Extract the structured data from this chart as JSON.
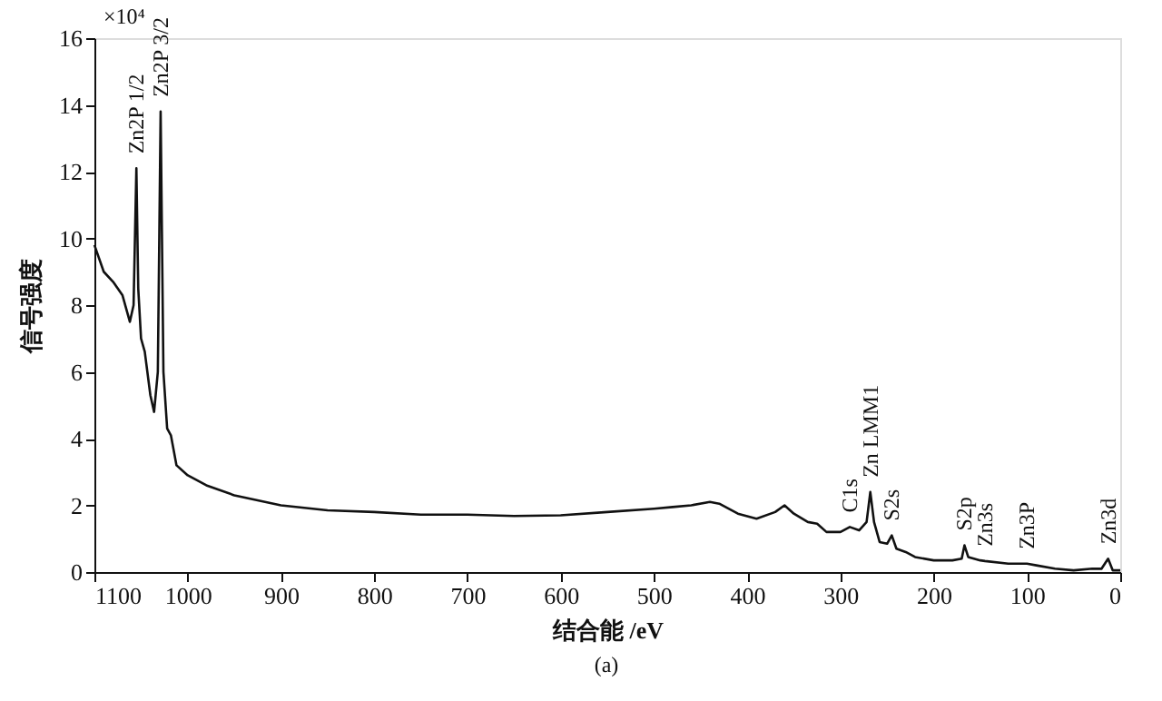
{
  "chart_data": {
    "type": "line",
    "xlabel": "结合能 /eV",
    "ylabel": "信号强度",
    "x": [
      1100,
      1090,
      1080,
      1070,
      1062,
      1058,
      1055,
      1053,
      1050,
      1046,
      1040,
      1036,
      1032,
      1029,
      1026,
      1022,
      1018,
      1012,
      1000,
      980,
      950,
      900,
      850,
      800,
      750,
      700,
      650,
      600,
      550,
      500,
      480,
      460,
      440,
      430,
      410,
      390,
      370,
      360,
      350,
      335,
      325,
      315,
      300,
      290,
      280,
      272,
      268,
      264,
      258,
      250,
      245,
      240,
      230,
      220,
      200,
      180,
      170,
      167,
      163,
      150,
      145,
      120,
      100,
      90,
      70,
      50,
      30,
      20,
      13,
      8,
      0
    ],
    "series": [
      {
        "color": "#111111",
        "values": [
          9.8,
          9.0,
          8.7,
          8.3,
          7.5,
          8.0,
          12.1,
          8.5,
          7.0,
          6.6,
          5.3,
          4.8,
          6.0,
          13.8,
          6.0,
          4.3,
          4.1,
          3.2,
          2.9,
          2.6,
          2.3,
          2.0,
          1.85,
          1.8,
          1.72,
          1.72,
          1.68,
          1.7,
          1.8,
          1.9,
          1.95,
          2.0,
          2.1,
          2.05,
          1.75,
          1.6,
          1.8,
          2.0,
          1.75,
          1.5,
          1.45,
          1.2,
          1.2,
          1.35,
          1.25,
          1.5,
          2.4,
          1.5,
          0.9,
          0.85,
          1.1,
          0.7,
          0.6,
          0.45,
          0.35,
          0.35,
          0.4,
          0.8,
          0.45,
          0.35,
          0.33,
          0.25,
          0.25,
          0.2,
          0.1,
          0.05,
          0.1,
          0.1,
          0.4,
          0.05,
          0.05
        ]
      }
    ],
    "xlim": [
      1100,
      0
    ],
    "xticks": [
      1100,
      1000,
      900,
      800,
      700,
      600,
      500,
      400,
      300,
      200,
      100,
      0
    ],
    "ylim": [
      0,
      16
    ],
    "yticks": [
      0,
      2,
      4,
      6,
      8,
      10,
      12,
      14,
      16
    ],
    "grid": false,
    "marker": "none",
    "line_style": "solid",
    "annotations": [
      {
        "text": "Zn2P 1/2",
        "x": 1055,
        "y": 12.1
      },
      {
        "text": "Zn2P 3/2",
        "x": 1029,
        "y": 13.8
      },
      {
        "text": "C1s",
        "x": 290,
        "y": 1.35
      },
      {
        "text": "Zn LMM1",
        "x": 268,
        "y": 2.4
      },
      {
        "text": "S2s",
        "x": 245,
        "y": 1.1
      },
      {
        "text": "S2p",
        "x": 167,
        "y": 0.8
      },
      {
        "text": "Zn3s",
        "x": 145,
        "y": 0.33
      },
      {
        "text": "Zn3P",
        "x": 100,
        "y": 0.25
      },
      {
        "text": "Zn3d",
        "x": 13,
        "y": 0.4
      },
      "×10⁴",
      "(a)"
    ]
  }
}
